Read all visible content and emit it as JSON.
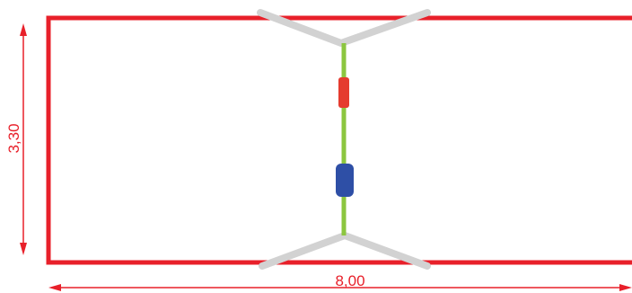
{
  "diagram": {
    "dimensions": {
      "height_label": "3,30",
      "width_label": "8,00"
    },
    "colors": {
      "outline": "#e8202a",
      "dimension": "#e8202a",
      "net_post": "#8cc63f",
      "net_wing": "#d2d2d2",
      "marker_top": "#e53b2f",
      "marker_bottom": "#2e4fa6"
    }
  }
}
